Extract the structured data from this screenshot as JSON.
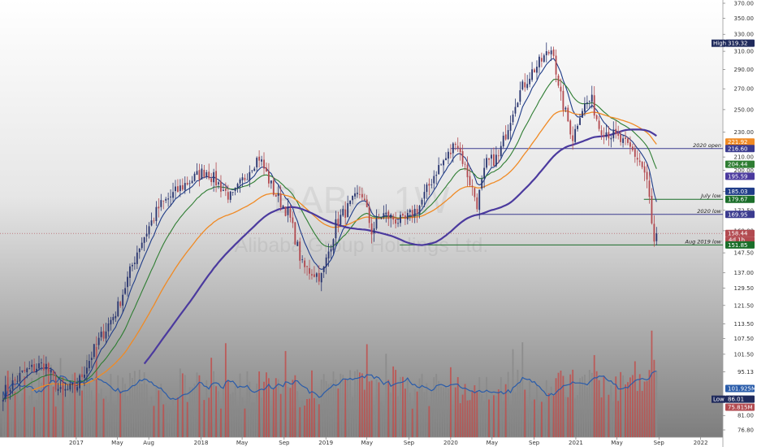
{
  "watermark": {
    "symbol": "BABA, 1W",
    "name": "Alibaba Group Holdings Ltd."
  },
  "colors": {
    "up": "#2a3670",
    "down": "#b24a50",
    "ema_short": "#1f3c88",
    "ema_mid": "#2e7d32",
    "ema_long": "#f08a24",
    "ma_200": "#4b3a9e",
    "vol_up": "#8a8a8a",
    "vol_down": "#c0504d",
    "vol_ma": "#2a5caa",
    "hline_blue": "#3b3b8f",
    "hline_green": "#1b6e2a"
  },
  "chart_data": {
    "type": "candlestick",
    "timeframe": "1W",
    "price_axis": {
      "scale": "log",
      "ticks": [
        "370.00",
        "350.00",
        "330.00",
        "310.00",
        "290.00",
        "270.00",
        "250.00",
        "230.00",
        "210.00",
        "200.00",
        "185.00",
        "172.50",
        "160.00",
        "147.50",
        "137.00",
        "129.50",
        "121.50",
        "113.50",
        "107.50",
        "101.50",
        "95.13",
        "86.01",
        "81.00",
        "76.80"
      ],
      "tick_values": [
        370,
        350,
        330,
        310,
        290,
        270,
        250,
        230,
        210,
        200,
        185,
        172.5,
        160,
        147.5,
        137,
        129.5,
        121.5,
        113.5,
        107.5,
        101.5,
        95.13,
        86.01,
        81,
        76.8
      ]
    },
    "time_axis": {
      "labels": [
        "2017",
        "May",
        "Aug",
        "2018",
        "May",
        "Sep",
        "2019",
        "May",
        "Sep",
        "2020",
        "May",
        "Sep",
        "2021",
        "May",
        "Sep",
        "2022"
      ],
      "label_dates": [
        "2017-01-01",
        "2017-05-01",
        "2017-08-01",
        "2018-01-01",
        "2018-05-01",
        "2018-09-01",
        "2019-01-01",
        "2019-05-01",
        "2019-09-01",
        "2020-01-01",
        "2020-05-01",
        "2020-09-01",
        "2021-01-01",
        "2021-05-01",
        "2021-09-01",
        "2022-01-01"
      ],
      "range": [
        "2016-05-23",
        "2022-03-07"
      ]
    },
    "price_key_points": [
      [
        "2016-06-01",
        88
      ],
      [
        "2016-08-01",
        95
      ],
      [
        "2016-10-01",
        98
      ],
      [
        "2016-11-15",
        88
      ],
      [
        "2017-01-01",
        90
      ],
      [
        "2017-03-01",
        105
      ],
      [
        "2017-05-01",
        120
      ],
      [
        "2017-07-01",
        150
      ],
      [
        "2017-09-01",
        175
      ],
      [
        "2017-11-15",
        190
      ],
      [
        "2018-01-15",
        200
      ],
      [
        "2018-04-01",
        180
      ],
      [
        "2018-06-01",
        205
      ],
      [
        "2018-06-20",
        210
      ],
      [
        "2018-08-01",
        185
      ],
      [
        "2018-09-15",
        170
      ],
      [
        "2018-10-25",
        140
      ],
      [
        "2018-12-20",
        135
      ],
      [
        "2019-02-01",
        165
      ],
      [
        "2019-04-15",
        185
      ],
      [
        "2019-05-15",
        160
      ],
      [
        "2019-06-15",
        170
      ],
      [
        "2019-08-15",
        165
      ],
      [
        "2019-10-01",
        175
      ],
      [
        "2019-11-20",
        200
      ],
      [
        "2020-01-05",
        215
      ],
      [
        "2020-01-15",
        225
      ],
      [
        "2020-03-18",
        177
      ],
      [
        "2020-04-15",
        205
      ],
      [
        "2020-05-20",
        210
      ],
      [
        "2020-07-10",
        260
      ],
      [
        "2020-08-20",
        285
      ],
      [
        "2020-10-27",
        315
      ],
      [
        "2020-11-10",
        270
      ],
      [
        "2020-12-24",
        225
      ],
      [
        "2021-01-15",
        250
      ],
      [
        "2021-02-15",
        260
      ],
      [
        "2021-03-10",
        235
      ],
      [
        "2021-05-01",
        225
      ],
      [
        "2021-06-15",
        215
      ],
      [
        "2021-07-10",
        205
      ],
      [
        "2021-07-25",
        195
      ],
      [
        "2021-08-02",
        185
      ],
      [
        "2021-08-10",
        165
      ],
      [
        "2021-08-18",
        152
      ],
      [
        "2021-08-27",
        158.44
      ]
    ],
    "volume": {
      "badges": [
        "101.925M",
        "75.815M"
      ]
    },
    "indicators": [
      {
        "type": "ema",
        "period": "short",
        "color_key": "ema_short"
      },
      {
        "type": "ema",
        "period": "mid",
        "color_key": "ema_mid"
      },
      {
        "type": "ema",
        "period": "long",
        "color_key": "ema_long"
      },
      {
        "type": "sma",
        "period": "long",
        "color_key": "ma_200"
      }
    ],
    "levels": [
      {
        "label": "2020 open",
        "value": 216.6,
        "color_key": "hline_blue",
        "from": "2020-01-02"
      },
      {
        "label": "July low",
        "value": 179.67,
        "color_key": "hline_green",
        "from": "2021-07-19"
      },
      {
        "label": "2020 low",
        "value": 169.95,
        "color_key": "hline_blue",
        "from": "2020-03-16"
      },
      {
        "label": "Aug 2019 low",
        "value": 151.85,
        "color_key": "hline_green",
        "from": "2019-08-05"
      }
    ],
    "badges": [
      {
        "label": "High",
        "text": "319.32",
        "value": 319.32,
        "bg": "#1f2a5c"
      },
      {
        "label": "",
        "text": "221.92",
        "value": 221.92,
        "bg": "#f08a24"
      },
      {
        "label": "",
        "text": "216.60",
        "value": 216.6,
        "bg": "#3b3b8f"
      },
      {
        "label": "",
        "text": "204.44",
        "value": 204.44,
        "bg": "#2e7d32"
      },
      {
        "label": "",
        "text": "195.59",
        "value": 195.59,
        "bg": "#4b3a9e"
      },
      {
        "label": "",
        "text": "185.03",
        "value": 185.03,
        "bg": "#1f3c88"
      },
      {
        "label": "",
        "text": "179.67",
        "value": 179.67,
        "bg": "#1b6e2a"
      },
      {
        "label": "",
        "text": "169.95",
        "value": 169.95,
        "bg": "#3b3b8f"
      },
      {
        "label": "",
        "text": "158.44",
        "value": 158.44,
        "bg": "#b24a50",
        "sub": "4d 1h"
      },
      {
        "label": "",
        "text": "151.85",
        "value": 151.85,
        "bg": "#1b6e2a"
      },
      {
        "label": "Low",
        "text": "86.01",
        "value": 86.01,
        "bg": "#1f2a5c"
      }
    ]
  }
}
